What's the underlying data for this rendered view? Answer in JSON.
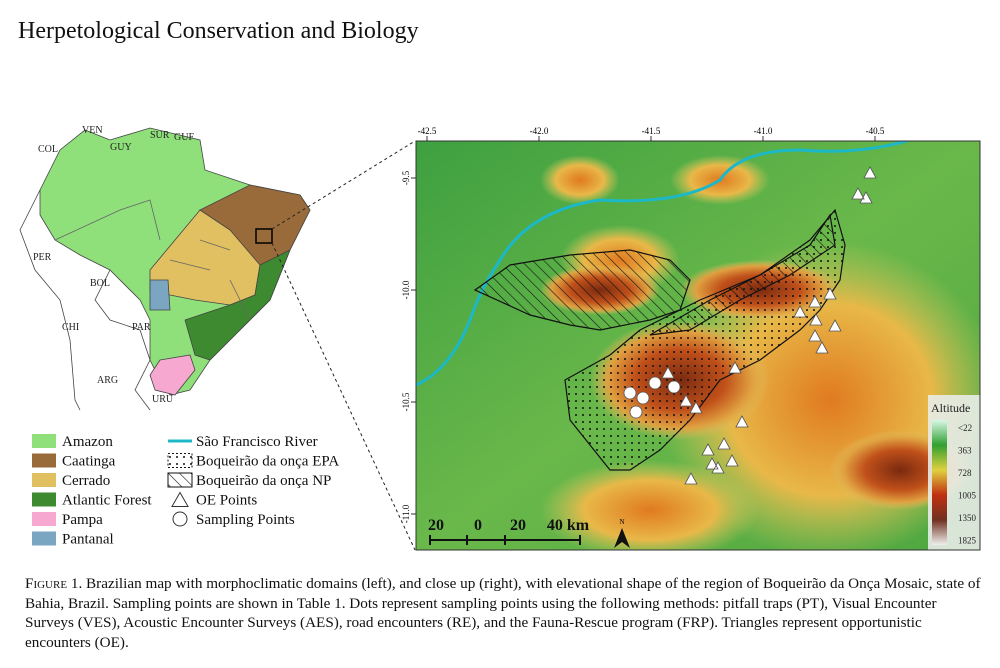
{
  "header": {
    "title": "Herpetological Conservation and Biology"
  },
  "left_map": {
    "countries": [
      "COL",
      "VEN",
      "GUY",
      "SUR",
      "GUF",
      "PER",
      "BOL",
      "CHI",
      "PAR",
      "ARG",
      "URU"
    ]
  },
  "legend": {
    "domains": [
      "Amazon",
      "Caatinga",
      "Cerrado",
      "Atlantic Forest",
      "Pampa",
      "Pantanal"
    ],
    "symbols": [
      "São Francisco River",
      "Boqueirão da onça EPA",
      "Boqueirão da onça NP",
      "OE Points",
      "Sampling Points"
    ]
  },
  "right_map": {
    "lon_ticks": [
      "-42.5",
      "-42.0",
      "-41.5",
      "-41.0",
      "-40.5"
    ],
    "lat_ticks": [
      "-9.5",
      "-10.0",
      "-10.5",
      "-11.0"
    ],
    "scale": [
      "20",
      "0",
      "20",
      "40 km"
    ],
    "north": "N",
    "altitude": {
      "title": "Altitude",
      "labels": [
        "<22",
        "363",
        "728",
        "1005",
        "1350",
        "1825"
      ]
    }
  },
  "caption": {
    "label": "Figure 1",
    "text": ". Brazilian map with morphoclimatic domains (left), and close up (right), with elevational shape of the region of Boqueirão da Onça Mosaic, state of Bahia, Brazil. Sampling points are shown in Table 1. Dots represent sampling points using the following methods: pitfall traps (PT), Visual Encounter Surveys (VES), Acoustic Encounter Surveys (AES), road encounters (RE), and the Fauna-Rescue program (FRP). Triangles represent opportunistic encounters (OE)."
  }
}
